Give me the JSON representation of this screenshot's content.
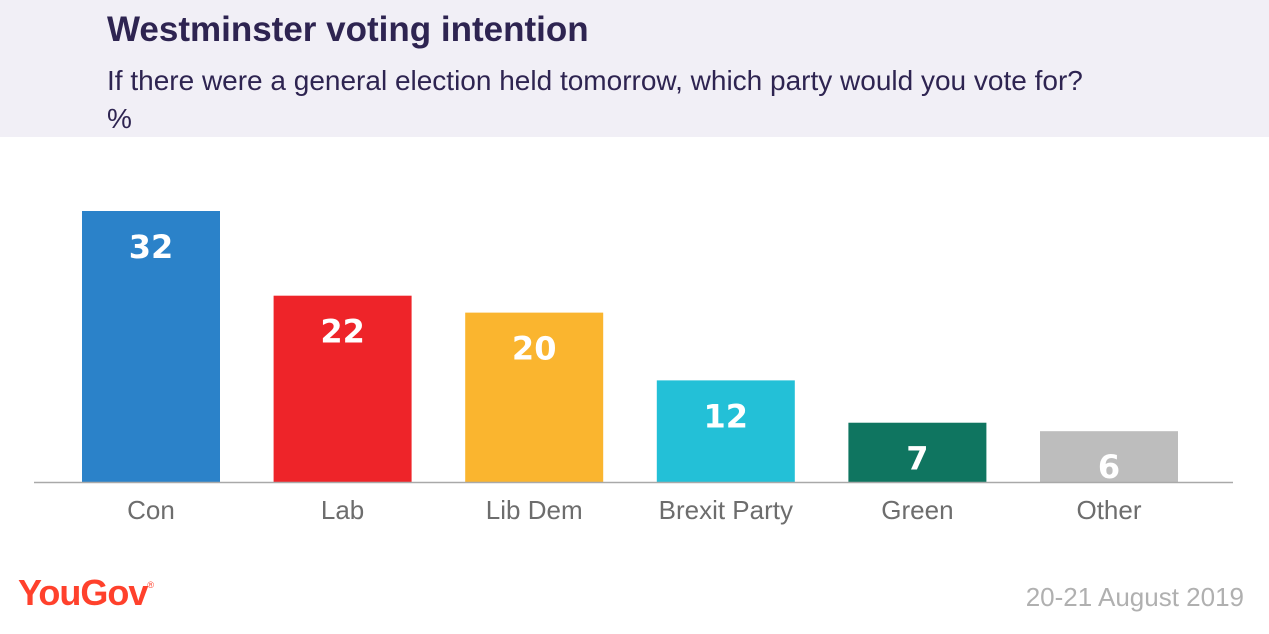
{
  "header": {
    "title": "Westminster voting intention",
    "subtitle": "If there were a general election held tomorrow, which party would you vote for? %"
  },
  "footer": {
    "brand": "YouGov",
    "brand_mark": "®",
    "date": "20-21 August 2019"
  },
  "chart_data": {
    "type": "bar",
    "categories": [
      "Con",
      "Lab",
      "Lib Dem",
      "Brexit Party",
      "Green",
      "Other"
    ],
    "values": [
      32,
      22,
      20,
      12,
      7,
      6
    ],
    "colors": [
      "#2b82c9",
      "#ee2429",
      "#fab52f",
      "#23c0d7",
      "#0f7560",
      "#bdbdbd"
    ],
    "title": "Westminster voting intention",
    "xlabel": "",
    "ylabel": "",
    "ylim": [
      0,
      32
    ],
    "grid": false,
    "legend": "none"
  }
}
